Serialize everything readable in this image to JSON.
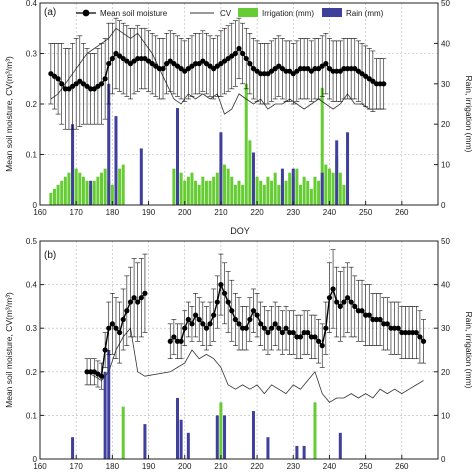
{
  "figure": {
    "x_axis_label": "DOY",
    "left_axis_label": "Mean soil moisture, CV(m³/m³)",
    "right_axis_label": "Rain, irrigation (mm)",
    "legend": {
      "mean": "Mean soil moisture",
      "cv": "CV",
      "irrigation": "Irrigation (mm)",
      "rain": "Rain (mm)"
    },
    "colors": {
      "mean": "#000000",
      "cv": "#333333",
      "irrigation": "#66cc33",
      "rain": "#3f3f9c",
      "grid": "#b8b8b8"
    }
  },
  "chart_data": [
    {
      "type": "line",
      "panel_label": "(a)",
      "xlim": [
        160,
        270
      ],
      "ylim_left": [
        0,
        0.4
      ],
      "ylim_right": [
        0,
        50
      ],
      "xticks": [
        160,
        170,
        180,
        190,
        200,
        210,
        220,
        230,
        240,
        250,
        260
      ],
      "yticks_left": [
        0,
        0.1,
        0.2,
        0.3,
        0.4
      ],
      "yticks_right": [
        0,
        10,
        20,
        30,
        40,
        50
      ],
      "grid": true,
      "legend_position": "top",
      "mean": {
        "x": [
          163,
          164,
          165,
          166,
          167,
          168,
          169,
          170,
          171,
          172,
          173,
          174,
          175,
          176,
          177,
          178,
          179,
          180,
          181,
          182,
          183,
          184,
          185,
          186,
          187,
          188,
          189,
          190,
          191,
          192,
          193,
          194,
          195,
          196,
          197,
          198,
          199,
          200,
          201,
          202,
          203,
          204,
          205,
          206,
          207,
          208,
          209,
          210,
          211,
          212,
          213,
          214,
          215,
          216,
          217,
          218,
          219,
          220,
          221,
          222,
          223,
          224,
          225,
          226,
          227,
          228,
          229,
          230,
          231,
          232,
          233,
          234,
          235,
          236,
          237,
          238,
          239,
          240,
          241,
          242,
          243,
          244,
          245,
          246,
          247,
          248,
          249,
          250,
          251,
          252,
          253,
          254,
          255
        ],
        "y": [
          0.26,
          0.255,
          0.25,
          0.24,
          0.23,
          0.23,
          0.235,
          0.24,
          0.245,
          0.24,
          0.235,
          0.23,
          0.23,
          0.235,
          0.24,
          0.25,
          0.28,
          0.29,
          0.3,
          0.295,
          0.29,
          0.285,
          0.28,
          0.285,
          0.29,
          0.29,
          0.29,
          0.285,
          0.28,
          0.275,
          0.27,
          0.27,
          0.28,
          0.285,
          0.28,
          0.275,
          0.27,
          0.265,
          0.27,
          0.275,
          0.28,
          0.28,
          0.285,
          0.28,
          0.275,
          0.27,
          0.275,
          0.28,
          0.285,
          0.29,
          0.295,
          0.3,
          0.31,
          0.3,
          0.29,
          0.28,
          0.27,
          0.265,
          0.26,
          0.26,
          0.26,
          0.265,
          0.27,
          0.275,
          0.27,
          0.265,
          0.265,
          0.26,
          0.265,
          0.27,
          0.27,
          0.27,
          0.265,
          0.27,
          0.27,
          0.275,
          0.28,
          0.27,
          0.265,
          0.265,
          0.265,
          0.27,
          0.27,
          0.27,
          0.27,
          0.265,
          0.26,
          0.255,
          0.25,
          0.245,
          0.24,
          0.24,
          0.24
        ],
        "err": [
          0.06,
          0.065,
          0.07,
          0.08,
          0.08,
          0.08,
          0.085,
          0.09,
          0.09,
          0.08,
          0.075,
          0.07,
          0.07,
          0.075,
          0.08,
          0.08,
          0.08,
          0.07,
          0.07,
          0.07,
          0.07,
          0.07,
          0.07,
          0.065,
          0.065,
          0.06,
          0.06,
          0.06,
          0.06,
          0.06,
          0.06,
          0.06,
          0.06,
          0.06,
          0.06,
          0.06,
          0.06,
          0.06,
          0.06,
          0.06,
          0.06,
          0.06,
          0.06,
          0.06,
          0.06,
          0.06,
          0.06,
          0.065,
          0.065,
          0.065,
          0.065,
          0.065,
          0.06,
          0.06,
          0.06,
          0.06,
          0.06,
          0.06,
          0.06,
          0.06,
          0.06,
          0.06,
          0.06,
          0.06,
          0.06,
          0.06,
          0.06,
          0.06,
          0.06,
          0.06,
          0.06,
          0.06,
          0.06,
          0.06,
          0.06,
          0.06,
          0.06,
          0.06,
          0.06,
          0.06,
          0.06,
          0.06,
          0.06,
          0.06,
          0.06,
          0.06,
          0.06,
          0.06,
          0.06,
          0.06,
          0.05,
          0.05,
          0.05
        ]
      },
      "cv": {
        "x": [
          163,
          165,
          167,
          169,
          171,
          173,
          175,
          177,
          179,
          181,
          183,
          185,
          187,
          189,
          191,
          193,
          195,
          197,
          199,
          201,
          203,
          205,
          207,
          209,
          211,
          213,
          215,
          217,
          219,
          221,
          223,
          225,
          227,
          229,
          231,
          233,
          235,
          237,
          239,
          241,
          243,
          245,
          247,
          249,
          251,
          253,
          255
        ],
        "y": [
          0.21,
          0.22,
          0.24,
          0.26,
          0.28,
          0.3,
          0.31,
          0.32,
          0.33,
          0.35,
          0.34,
          0.33,
          0.34,
          0.32,
          0.3,
          0.27,
          0.24,
          0.21,
          0.2,
          0.22,
          0.21,
          0.22,
          0.21,
          0.22,
          0.18,
          0.19,
          0.22,
          0.21,
          0.2,
          0.21,
          0.19,
          0.2,
          0.2,
          0.21,
          0.2,
          0.19,
          0.2,
          0.21,
          0.2,
          0.19,
          0.2,
          0.22,
          0.2,
          0.2,
          0.19,
          0.19,
          0.19
        ]
      },
      "irrigation": {
        "x": [
          163,
          164,
          165,
          166,
          167,
          168,
          169,
          170,
          171,
          172,
          173,
          174,
          175,
          176,
          177,
          178,
          179,
          180,
          181,
          182,
          183,
          197,
          198,
          199,
          200,
          201,
          202,
          203,
          204,
          205,
          206,
          207,
          208,
          209,
          210,
          211,
          212,
          213,
          214,
          215,
          216,
          217,
          218,
          219,
          220,
          221,
          222,
          223,
          224,
          225,
          226,
          227,
          228,
          229,
          230,
          231,
          232,
          233,
          234,
          235,
          236,
          237,
          238,
          239,
          240,
          241,
          242,
          243,
          244,
          245
        ],
        "values": [
          3,
          4,
          5,
          6,
          7,
          8,
          12,
          9,
          8,
          7,
          6,
          5,
          6,
          7,
          8,
          9,
          6,
          5,
          7,
          9,
          10,
          9,
          10,
          8,
          6,
          7,
          8,
          6,
          5,
          7,
          6,
          6,
          7,
          8,
          9,
          10,
          9,
          7,
          5,
          6,
          5,
          30,
          16,
          8,
          7,
          6,
          5,
          7,
          6,
          8,
          5,
          7,
          6,
          8,
          7,
          9,
          5,
          7,
          6,
          4,
          7,
          6,
          29,
          10,
          9,
          8,
          12,
          8,
          5,
          4
        ]
      },
      "rain": {
        "x": [
          169,
          174,
          179,
          181,
          188,
          198,
          210,
          219,
          227,
          230,
          238,
          242,
          245
        ],
        "values": [
          20,
          6,
          30,
          22,
          14,
          24,
          18,
          13,
          9,
          9,
          8,
          16,
          18
        ]
      }
    },
    {
      "type": "line",
      "panel_label": "(b)",
      "xlim": [
        160,
        270
      ],
      "ylim_left": [
        0,
        0.5
      ],
      "ylim_right": [
        0,
        50
      ],
      "xticks": [
        160,
        170,
        180,
        190,
        200,
        210,
        220,
        230,
        240,
        250,
        260
      ],
      "yticks_left": [
        0,
        0.1,
        0.2,
        0.3,
        0.4,
        0.5
      ],
      "yticks_right": [
        0,
        10,
        20,
        30,
        40,
        50
      ],
      "grid": true,
      "mean": {
        "x": [
          173,
          174,
          175,
          176,
          177,
          178,
          179,
          180,
          181,
          182,
          183,
          184,
          185,
          186,
          187,
          188,
          189,
          196,
          197,
          198,
          199,
          200,
          201,
          202,
          203,
          204,
          205,
          206,
          207,
          208,
          209,
          210,
          211,
          212,
          213,
          214,
          215,
          216,
          217,
          218,
          219,
          220,
          221,
          222,
          223,
          224,
          225,
          226,
          227,
          228,
          229,
          230,
          231,
          232,
          233,
          234,
          235,
          236,
          237,
          238,
          239,
          240,
          241,
          242,
          243,
          244,
          245,
          246,
          247,
          248,
          249,
          250,
          251,
          252,
          253,
          254,
          255,
          256,
          257,
          258,
          259,
          260,
          261,
          262,
          263,
          264,
          265,
          266
        ],
        "y": [
          0.2,
          0.2,
          0.2,
          0.195,
          0.19,
          0.25,
          0.3,
          0.31,
          0.3,
          0.29,
          0.32,
          0.34,
          0.36,
          0.37,
          0.36,
          0.37,
          0.38,
          0.27,
          0.28,
          0.27,
          0.27,
          0.3,
          0.32,
          0.31,
          0.33,
          0.32,
          0.31,
          0.3,
          0.31,
          0.33,
          0.36,
          0.4,
          0.38,
          0.36,
          0.34,
          0.32,
          0.31,
          0.3,
          0.3,
          0.32,
          0.34,
          0.33,
          0.31,
          0.3,
          0.29,
          0.3,
          0.31,
          0.3,
          0.29,
          0.3,
          0.29,
          0.29,
          0.28,
          0.28,
          0.29,
          0.29,
          0.28,
          0.28,
          0.27,
          0.26,
          0.3,
          0.37,
          0.39,
          0.36,
          0.35,
          0.36,
          0.37,
          0.36,
          0.35,
          0.34,
          0.34,
          0.33,
          0.33,
          0.32,
          0.32,
          0.32,
          0.31,
          0.31,
          0.3,
          0.3,
          0.3,
          0.29,
          0.29,
          0.29,
          0.29,
          0.29,
          0.28,
          0.27
        ],
        "err": [
          0.03,
          0.03,
          0.03,
          0.03,
          0.03,
          0.04,
          0.06,
          0.07,
          0.07,
          0.07,
          0.07,
          0.08,
          0.08,
          0.09,
          0.09,
          0.09,
          0.09,
          0.04,
          0.04,
          0.04,
          0.04,
          0.04,
          0.04,
          0.04,
          0.05,
          0.05,
          0.05,
          0.05,
          0.05,
          0.06,
          0.06,
          0.07,
          0.07,
          0.07,
          0.07,
          0.06,
          0.06,
          0.05,
          0.05,
          0.05,
          0.05,
          0.05,
          0.05,
          0.05,
          0.05,
          0.05,
          0.05,
          0.05,
          0.05,
          0.05,
          0.05,
          0.05,
          0.05,
          0.05,
          0.05,
          0.05,
          0.05,
          0.05,
          0.05,
          0.05,
          0.06,
          0.08,
          0.09,
          0.08,
          0.08,
          0.08,
          0.08,
          0.08,
          0.07,
          0.07,
          0.07,
          0.07,
          0.07,
          0.06,
          0.06,
          0.06,
          0.06,
          0.06,
          0.06,
          0.06,
          0.06,
          0.06,
          0.06,
          0.06,
          0.06,
          0.06,
          0.06,
          0.05
        ]
      },
      "cv": {
        "x": [
          173,
          175,
          177,
          179,
          181,
          183,
          185,
          187,
          189,
          196,
          198,
          200,
          202,
          204,
          206,
          208,
          210,
          212,
          214,
          216,
          218,
          220,
          222,
          224,
          226,
          228,
          230,
          232,
          234,
          236,
          238,
          240,
          242,
          244,
          246,
          248,
          250,
          252,
          254,
          256,
          258,
          260,
          262,
          264,
          266
        ],
        "y": [
          0.2,
          0.19,
          0.18,
          0.2,
          0.25,
          0.28,
          0.3,
          0.2,
          0.19,
          0.2,
          0.21,
          0.22,
          0.25,
          0.23,
          0.24,
          0.23,
          0.21,
          0.17,
          0.16,
          0.17,
          0.16,
          0.17,
          0.15,
          0.17,
          0.16,
          0.15,
          0.17,
          0.16,
          0.18,
          0.2,
          0.15,
          0.13,
          0.14,
          0.14,
          0.15,
          0.14,
          0.15,
          0.14,
          0.16,
          0.15,
          0.16,
          0.15,
          0.16,
          0.17,
          0.18
        ]
      },
      "irrigation": {
        "x": [
          183,
          210,
          236
        ],
        "values": [
          12,
          13,
          13
        ]
      },
      "rain": {
        "x": [
          169,
          178,
          179,
          189,
          198,
          199,
          201,
          209,
          211,
          219,
          223,
          231,
          233,
          243
        ],
        "values": [
          5,
          20,
          25,
          8,
          14,
          9,
          6,
          10,
          10,
          11,
          5,
          3,
          3,
          6
        ]
      }
    }
  ]
}
